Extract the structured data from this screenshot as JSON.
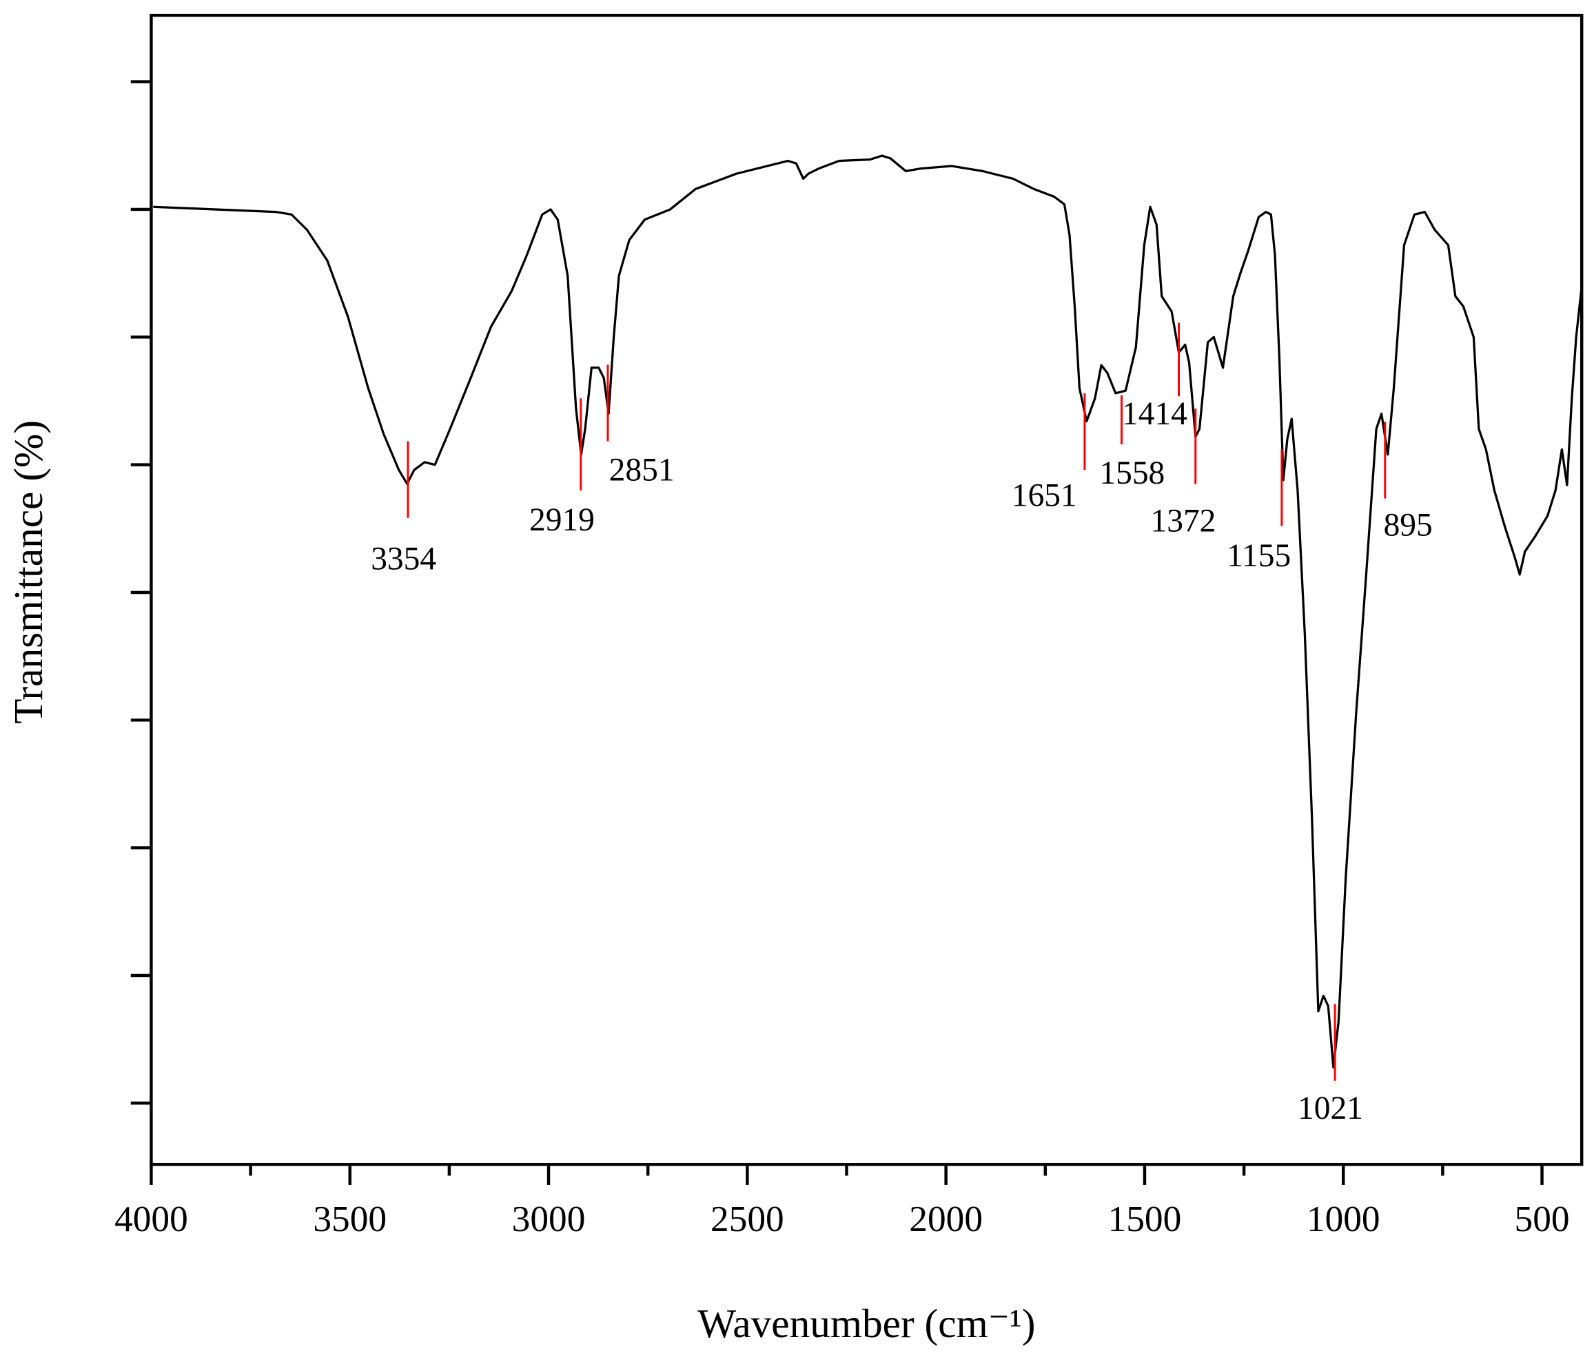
{
  "chart_data": {
    "type": "line",
    "xlabel": "Wavenumber (cm⁻¹)",
    "ylabel": "Transmittance (%)",
    "xlim": [
      4000,
      400
    ],
    "ylim": [
      0.52,
      9.52
    ],
    "xticks": [
      4000,
      3500,
      3000,
      2500,
      2000,
      1500,
      1000,
      500
    ],
    "xminorticks": [
      3750,
      3250,
      2750,
      2250,
      1750,
      1250,
      750
    ],
    "yticks": [
      1,
      2,
      3,
      4,
      5,
      6,
      7,
      8,
      9
    ],
    "color": "#000000",
    "peak_color": "#ff0000",
    "x": [
      3995,
      3686,
      3647,
      3608,
      3557,
      3505,
      3454,
      3415,
      3377,
      3356,
      3338,
      3312,
      3286,
      3248,
      3196,
      3145,
      3093,
      3055,
      3016,
      2995,
      2977,
      2952,
      2931,
      2918,
      2908,
      2892,
      2874,
      2861,
      2849,
      2836,
      2823,
      2797,
      2758,
      2694,
      2630,
      2527,
      2398,
      2377,
      2359,
      2346,
      2320,
      2269,
      2192,
      2161,
      2140,
      2101,
      2063,
      1986,
      1908,
      1831,
      1779,
      1728,
      1702,
      1689,
      1676,
      1664,
      1646,
      1625,
      1609,
      1594,
      1573,
      1548,
      1522,
      1501,
      1486,
      1470,
      1457,
      1432,
      1414,
      1398,
      1388,
      1372,
      1362,
      1341,
      1326,
      1303,
      1277,
      1259,
      1239,
      1213,
      1195,
      1182,
      1172,
      1161,
      1151,
      1141,
      1130,
      1115,
      1097,
      1079,
      1063,
      1050,
      1038,
      1025,
      1012,
      994,
      968,
      942,
      917,
      904,
      888,
      873,
      847,
      821,
      795,
      770,
      736,
      718,
      698,
      672,
      659,
      641,
      620,
      594,
      569,
      556,
      543,
      517,
      486,
      466,
      450,
      437,
      425,
      414,
      400
    ],
    "values": [
      8.02,
      7.98,
      7.96,
      7.84,
      7.6,
      7.16,
      6.6,
      6.24,
      5.96,
      5.85,
      5.96,
      6.02,
      6.0,
      6.28,
      6.68,
      7.08,
      7.36,
      7.64,
      7.96,
      8.0,
      7.92,
      7.48,
      6.44,
      6.08,
      6.28,
      6.76,
      6.76,
      6.68,
      6.4,
      7.0,
      7.48,
      7.76,
      7.92,
      8.0,
      8.16,
      8.28,
      8.38,
      8.36,
      8.24,
      8.28,
      8.32,
      8.38,
      8.39,
      8.42,
      8.4,
      8.3,
      8.32,
      8.34,
      8.3,
      8.24,
      8.16,
      8.1,
      8.04,
      7.8,
      7.24,
      6.6,
      6.34,
      6.52,
      6.78,
      6.72,
      6.56,
      6.58,
      6.92,
      7.72,
      8.02,
      7.88,
      7.32,
      7.2,
      6.88,
      6.94,
      6.8,
      6.22,
      6.28,
      6.96,
      7.0,
      6.76,
      7.32,
      7.5,
      7.68,
      7.94,
      7.98,
      7.96,
      7.64,
      6.84,
      5.88,
      6.2,
      6.36,
      5.8,
      4.68,
      3.24,
      1.72,
      1.84,
      1.76,
      1.28,
      1.64,
      2.76,
      4.04,
      5.16,
      6.28,
      6.4,
      6.08,
      6.6,
      7.72,
      7.96,
      7.98,
      7.84,
      7.72,
      7.32,
      7.24,
      7.0,
      6.28,
      6.12,
      5.8,
      5.52,
      5.28,
      5.14,
      5.32,
      5.44,
      5.6,
      5.8,
      6.12,
      5.84,
      6.52,
      7.0,
      7.4
    ],
    "peaks": [
      3354,
      2919,
      2851,
      1651,
      1558,
      1414,
      1372,
      1155,
      1021,
      895
    ]
  }
}
